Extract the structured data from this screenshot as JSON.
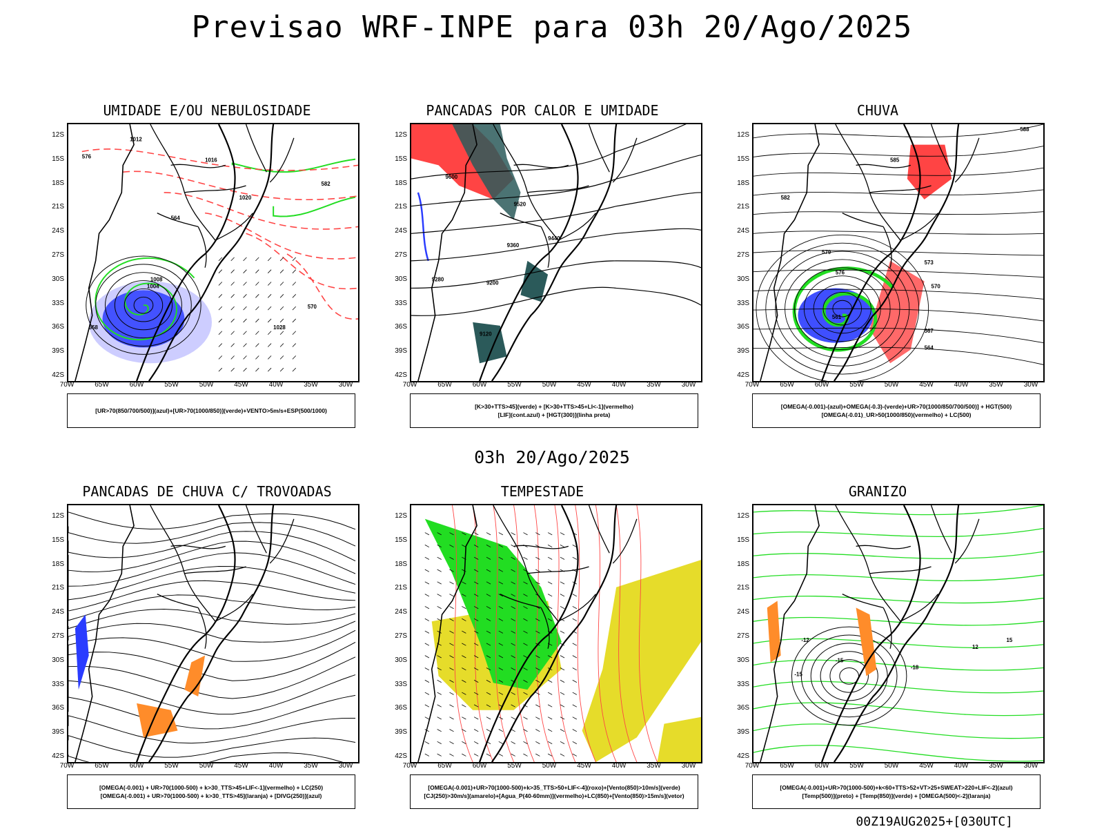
{
  "title": "Previsao WRF-INPE  para 03h 20/Ago/2025",
  "mid_title": "03h 20/Ago/2025",
  "footer": "00Z19AUG2025+[030UTC]",
  "lat_labels": [
    "12S",
    "15S",
    "18S",
    "21S",
    "24S",
    "27S",
    "30S",
    "33S",
    "36S",
    "39S",
    "42S"
  ],
  "lon_labels": [
    "70W",
    "65W",
    "60W",
    "55W",
    "50W",
    "45W",
    "40W",
    "35W",
    "30W"
  ],
  "colors": {
    "blue": "#2a3cff",
    "green": "#22dd22",
    "red": "#ff4444",
    "dark_teal": "#2b5a5a",
    "yellow": "#e6dc2a",
    "orange": "#ff8c2a",
    "lavender": "#c8c8ff"
  },
  "panels": [
    {
      "title": "UMIDADE E/OU NEBULOSIDADE",
      "legend": [
        "[UR>70(850/700/500)](azul)+[UR>70(1000/850)](verde)+VENTO>5m/s+ESP(500/1000)"
      ],
      "contour_labels": [
        "1012",
        "1016",
        "1020",
        "1004",
        "1008",
        "1028",
        "570",
        "576",
        "564",
        "558",
        "582"
      ]
    },
    {
      "title": "PANCADAS POR CALOR E UMIDADE",
      "legend": [
        "[K>30+TTS>45](verde) + [K>30+TTS>45+LI<-1](vermelho)",
        "[LIF](cont.azul) + [HGT(300)](linha preta)"
      ],
      "contour_labels": [
        "9600",
        "9520",
        "9440",
        "9360",
        "9280",
        "9200",
        "9120"
      ]
    },
    {
      "title": "CHUVA",
      "legend": [
        "[OMEGA(-0.001)-(azul)+OMEGA(-0.3)-(verde)+UR>70(1000/850/700/500)] + HGT(500)",
        "[OMEGA(-0.01)_UR>50(1000/850)(vermelho) + LC(500)"
      ],
      "contour_labels": [
        "588",
        "585",
        "582",
        "579",
        "576",
        "573",
        "570",
        "567",
        "564",
        "561"
      ]
    },
    {
      "title": "PANCADAS DE CHUVA C/ TROVOADAS",
      "legend": [
        "[OMEGA(-0.001) + UR>70(1000-500) + k>30_TTS>45+LIF<-1](vermelho) + LC(250)",
        "[OMEGA(-0.001) + UR>70(1000-500) + k>30_TTS>45](laranja) + [DIVG(250)](azul)"
      ],
      "contour_labels": []
    },
    {
      "title": "TEMPESTADE",
      "legend": [
        "[OMEGA(-0.001)+UR>70(1000-500)+k>35_TTS>50+LIF<-4](roxo)+[Vento(850)>10m/s](verde)",
        "[CJ(250)>30m/s](amarelo)+[Agua_P(40-60mm)](vermelho)+LC(850)+[Vento(850)>15m/s](vetor)"
      ],
      "contour_labels": []
    },
    {
      "title": "GRANIZO",
      "legend": [
        "[OMEGA(-0.001)+UR>70(1000-500)+k<60+TTS>52+VT>25+SWEAT>220+LIF<-2](azul)",
        "[Temp(500)](preto) + [Temp(850)](verde) + [OMEGA(500)<-2](laranja)"
      ],
      "contour_labels": [
        "-12",
        "-15",
        "-15",
        "-18",
        "12",
        "15"
      ]
    }
  ]
}
